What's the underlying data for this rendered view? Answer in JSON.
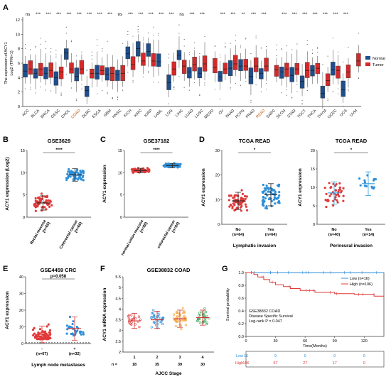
{
  "colors": {
    "normal": "#1f4e8c",
    "tumor": "#d42a2a",
    "red": "#e03a3a",
    "blue": "#2f8fd8",
    "orange": "#f0a23a",
    "green": "#3aa35a",
    "highlight": "#c05a10"
  },
  "chart_data": [
    {
      "panel": "A",
      "type": "box",
      "ylabel": "The expression of ACY1\nLog2 (TPM+1)",
      "ylim": [
        0,
        12
      ],
      "yticks": [
        0,
        2,
        4,
        6,
        8,
        10,
        12
      ],
      "legend": [
        "Normal",
        "Tumor"
      ],
      "categories": [
        "ACC",
        "BLCA",
        "BRCA",
        "CESC",
        "CHOL",
        "COAD",
        "DLBC",
        "ESCA",
        "GBM",
        "HNSC",
        "KICH",
        "KIRC",
        "KIRP",
        "LAML",
        "LGG",
        "LIHC",
        "LUAD",
        "LUSC",
        "MESO",
        "OV",
        "PAAD",
        "PCPG",
        "PRAD",
        "READ",
        "SARC",
        "SKCM",
        "STAD",
        "TGCT",
        "THCA",
        "THYM",
        "UCEC",
        "UCS",
        "UVM"
      ],
      "highlight": [
        "COAD",
        "READ"
      ],
      "significance": [
        "ns",
        "***",
        "***",
        "***",
        "***",
        "***",
        "***",
        "***",
        "***",
        "ns",
        "***",
        "***",
        "***",
        "***",
        "***",
        "ns",
        "***",
        "***",
        "",
        "***",
        "***",
        "**",
        "***",
        "***",
        "",
        "***",
        "***",
        "***",
        "***",
        "***",
        "***",
        "***",
        ""
      ],
      "normal_median": [
        4.9,
        4.6,
        4.6,
        4.0,
        7.4,
        4.2,
        2.2,
        4.6,
        4.5,
        4.4,
        7.3,
        8.0,
        7.6,
        6.2,
        3.3,
        7.1,
        4.8,
        4.6,
        null,
        4.1,
        5.3,
        5.6,
        4.2,
        4.6,
        null,
        4.8,
        4.3,
        3.5,
        5.0,
        1.8,
        5.1,
        2.3,
        null
      ],
      "tumor_median": [
        5.2,
        5.2,
        5.0,
        4.8,
        5.2,
        5.2,
        4.6,
        5.0,
        4.6,
        4.6,
        5.8,
        6.3,
        6.3,
        null,
        5.2,
        5.6,
        5.8,
        5.9,
        5.4,
        5.2,
        5.9,
        5.6,
        5.6,
        5.6,
        5.1,
        5.2,
        5.2,
        5.0,
        5.3,
        3.6,
        5.0,
        4.8,
        6.3
      ]
    },
    {
      "panel": "B",
      "type": "scatter",
      "title": "GSE3629",
      "ylabel": "ACY1 expression (Log2)",
      "ylim": [
        0,
        15
      ],
      "yticks": [
        0,
        5,
        10,
        15
      ],
      "categories": [
        "Rectal mucosa\n(n=65)",
        "Colorectal cancer\n(n=66)"
      ],
      "mean": [
        3.2,
        9.5
      ],
      "sd": [
        1.6,
        1.4
      ],
      "sig": "****"
    },
    {
      "panel": "C",
      "type": "scatter",
      "title": "GSE37182",
      "ylabel": "ACY1 expression",
      "ylim": [
        0,
        15
      ],
      "yticks": [
        0,
        5,
        10,
        15
      ],
      "categories": [
        "normal colon mucosa\n(n=88)",
        "colorectal cancer\n(n=84)"
      ],
      "mean": [
        10.5,
        11.6
      ],
      "sd": [
        0.5,
        0.5
      ],
      "sig": "****"
    },
    {
      "panel": "D1",
      "type": "scatter",
      "title": "TCGA READ",
      "ylabel": "ACY1 expression",
      "xlabel": "Lymphatic invasion",
      "ylim": [
        0,
        30
      ],
      "yticks": [
        0,
        10,
        20,
        30
      ],
      "categories": [
        "No\n(n=64)",
        "Yes\n(n=64)"
      ],
      "mean": [
        9.5,
        12.0
      ],
      "sd": [
        3.5,
        4.5
      ],
      "sig": "*"
    },
    {
      "panel": "D2",
      "type": "scatter",
      "title": "TCGA READ",
      "ylabel": "ACY1 expression",
      "xlabel": "Perineural invasion",
      "ylim": [
        0,
        20
      ],
      "yticks": [
        0,
        5,
        10,
        15,
        20
      ],
      "categories": [
        "No\n(n=40)",
        "Yes\n(n=14)"
      ],
      "mean": [
        8.5,
        11.0
      ],
      "sd": [
        3.0,
        3.2
      ],
      "sig": "*"
    },
    {
      "panel": "E",
      "type": "scatter",
      "title": "GSE4459 CRC",
      "ylabel": "ACY1 expression",
      "xlabel": "Lymph node metastases",
      "ylim": [
        0,
        40
      ],
      "yticks": [
        0,
        10,
        20,
        30,
        40
      ],
      "categories": [
        "-\n(n=67)",
        "+\n(n=32)"
      ],
      "mean": [
        5.5,
        9.0
      ],
      "sd": [
        5.0,
        7.0
      ],
      "sig": "p=0.058"
    },
    {
      "panel": "F",
      "type": "scatter",
      "title": "GSE38832 COAD",
      "ylabel": "ACY1 mRNA expression",
      "xlabel": "AJCC Stage",
      "ylim": [
        2.0,
        5.5
      ],
      "yticks": [
        2.0,
        2.5,
        3.0,
        3.5,
        4.0,
        4.5,
        5.0,
        5.5
      ],
      "categories": [
        "1",
        "2",
        "3",
        "4"
      ],
      "n_label": "n =",
      "n": [
        "18",
        "35",
        "39",
        "30"
      ],
      "mean": [
        3.45,
        3.5,
        3.55,
        3.6
      ],
      "sd": [
        0.35,
        0.4,
        0.4,
        0.35
      ]
    },
    {
      "panel": "G",
      "type": "line",
      "ylabel": "Survival probability",
      "xlabel": "Time(Months)",
      "ylim": [
        0,
        1.0
      ],
      "yticks": [
        "0.0",
        "0.2",
        "0.4",
        "0.6",
        "0.8",
        "1.0"
      ],
      "xticks": [
        "0",
        "30",
        "60",
        "90",
        "120"
      ],
      "xlim": [
        0,
        140
      ],
      "legend": [
        "Low (n=16)",
        "High (n=106)"
      ],
      "annotations": [
        "GSE38832 COAD",
        "Disease Specific Survival",
        "Log-rank P = 0.047"
      ],
      "series": [
        {
          "name": "Low (n=16)",
          "x": [
            0,
            140
          ],
          "y": [
            1.0,
            1.0
          ]
        },
        {
          "name": "High (n=106)",
          "x": [
            0,
            8,
            12,
            18,
            24,
            30,
            38,
            45,
            55,
            70,
            90,
            110,
            130,
            140
          ],
          "y": [
            1.0,
            0.97,
            0.93,
            0.89,
            0.85,
            0.81,
            0.78,
            0.75,
            0.72,
            0.69,
            0.67,
            0.66,
            0.63,
            0.63
          ]
        }
      ],
      "risk_table": {
        "rows": [
          {
            "label": "Low",
            "values": [
              "16",
              "9",
              "0",
              "0",
              "0"
            ]
          },
          {
            "label": "High",
            "values": [
              "106",
              "57",
              "27",
              "17",
              "0"
            ]
          }
        ]
      }
    }
  ]
}
